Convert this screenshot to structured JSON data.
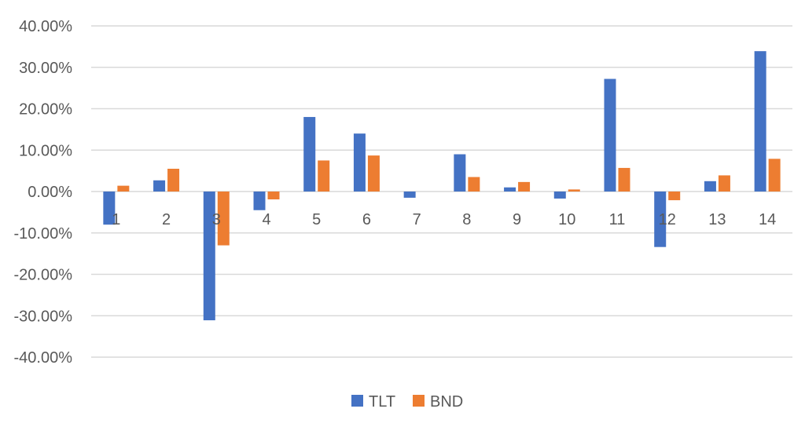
{
  "chart_data": {
    "type": "bar",
    "title": "",
    "xlabel": "",
    "ylabel": "",
    "categories": [
      "1",
      "2",
      "3",
      "4",
      "5",
      "6",
      "7",
      "8",
      "9",
      "10",
      "11",
      "12",
      "13",
      "14"
    ],
    "series": [
      {
        "name": "TLT",
        "color": "#4472c4",
        "values": [
          -0.08,
          0.027,
          -0.311,
          -0.045,
          0.18,
          0.14,
          -0.015,
          0.09,
          0.01,
          -0.017,
          0.272,
          -0.134,
          0.025,
          0.339
        ]
      },
      {
        "name": "BND",
        "color": "#ed7d31",
        "values": [
          0.014,
          0.055,
          -0.13,
          -0.019,
          0.075,
          0.087,
          0.0,
          0.035,
          0.023,
          0.005,
          0.057,
          -0.021,
          0.039,
          0.079
        ]
      }
    ],
    "ylim": [
      -0.4,
      0.4
    ],
    "yticks": [
      0.4,
      0.3,
      0.2,
      0.1,
      0.0,
      -0.1,
      -0.2,
      -0.3,
      -0.4
    ],
    "ytick_labels": [
      "40.00%",
      "30.00%",
      "20.00%",
      "10.00%",
      "0.00%",
      "-10.00%",
      "-20.00%",
      "-30.00%",
      "-40.00%"
    ],
    "grid": true,
    "legend_position": "bottom"
  }
}
